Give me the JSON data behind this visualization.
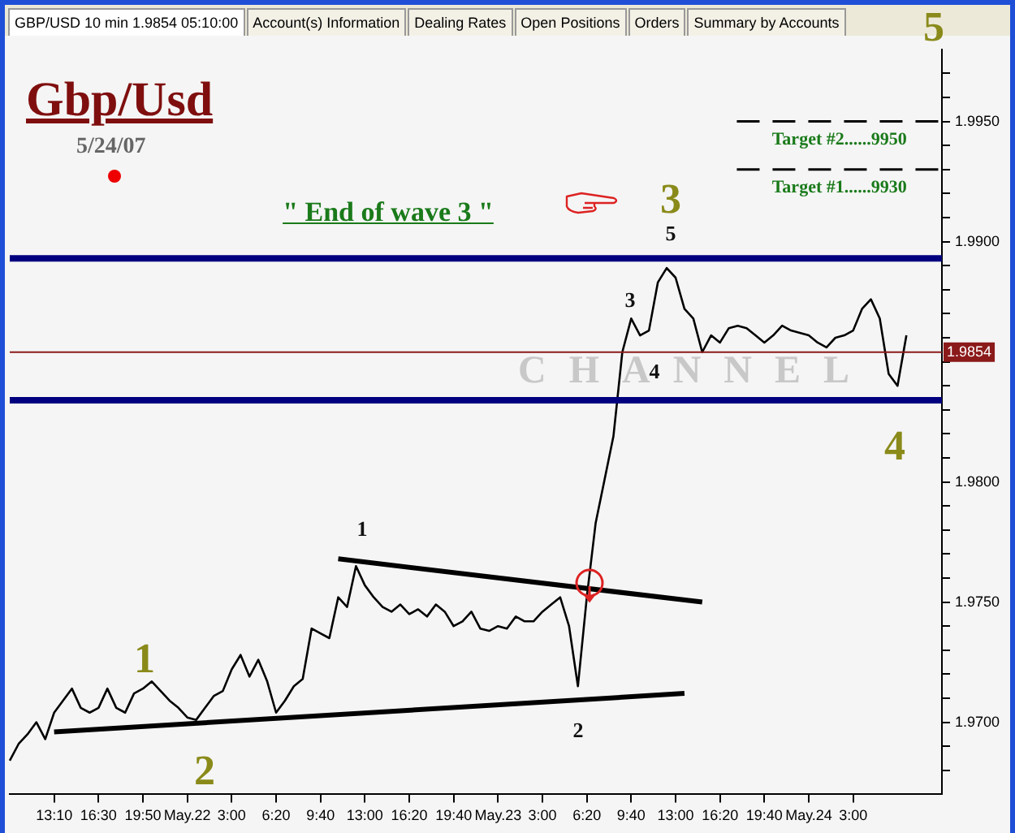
{
  "chart_data": {
    "type": "line",
    "title": "Gbp/Usd",
    "subtitle": "5/24/07",
    "categories": [
      null,
      null,
      null,
      null,
      null,
      "13:10",
      null,
      null,
      null,
      null,
      "16:30",
      null,
      null,
      null,
      null,
      "19:50",
      null,
      null,
      null,
      null,
      "May.22",
      null,
      null,
      null,
      null,
      "3:00",
      null,
      null,
      null,
      null,
      "6:20",
      null,
      null,
      null,
      null,
      "9:40",
      null,
      null,
      null,
      null,
      "13:00",
      null,
      null,
      null,
      null,
      "16:20",
      null,
      null,
      null,
      null,
      "19:40",
      null,
      null,
      null,
      null,
      "May.23",
      null,
      null,
      null,
      null,
      "3:00",
      null,
      null,
      null,
      null,
      "6:20",
      null,
      null,
      null,
      null,
      "9:40",
      null,
      null,
      null,
      null,
      "13:00",
      null,
      null,
      null,
      null,
      "16:20",
      null,
      null,
      null,
      null,
      "19:40",
      null,
      null,
      null,
      null,
      "May.24",
      null,
      null,
      null,
      null,
      "3:00",
      null,
      null,
      null,
      null,
      null,
      null,
      null,
      null,
      null,
      null
    ],
    "series": [
      {
        "color": "#000000",
        "values": [
          1.9684,
          1.9691,
          1.9695,
          1.97,
          1.9693,
          1.9704,
          1.9709,
          1.9714,
          1.9706,
          1.9704,
          1.9706,
          1.9714,
          1.9706,
          1.9704,
          1.9712,
          1.9714,
          1.9717,
          1.9713,
          1.9709,
          1.9706,
          1.9702,
          1.9701,
          1.9706,
          1.9711,
          1.9713,
          1.9722,
          1.9728,
          1.9719,
          1.9726,
          1.9717,
          1.9704,
          1.9709,
          1.9715,
          1.9718,
          1.9739,
          1.9737,
          1.9735,
          1.9752,
          1.9748,
          1.9765,
          1.9757,
          1.9752,
          1.9748,
          1.9746,
          1.9749,
          1.9745,
          1.9747,
          1.9744,
          1.9749,
          1.9746,
          1.974,
          1.9742,
          1.9746,
          1.9739,
          1.9738,
          1.974,
          1.9739,
          1.9744,
          1.9742,
          1.9742,
          1.9746,
          1.9749,
          1.9752,
          1.974,
          1.9715,
          1.9752,
          1.9783,
          1.9801,
          1.9819,
          1.9854,
          1.9868,
          1.9861,
          1.9863,
          1.9883,
          1.9889,
          1.9885,
          1.9872,
          1.9868,
          1.9854,
          1.9861,
          1.9858,
          1.9864,
          1.9865,
          1.9864,
          1.9861,
          1.9858,
          1.9861,
          1.9865,
          1.9863,
          1.9862,
          1.9861,
          1.9858,
          1.9856,
          1.986,
          1.9861,
          1.9863,
          1.9872,
          1.9876,
          1.9868,
          1.9845,
          1.984,
          1.9861,
          null,
          null,
          null,
          null
        ]
      },
      {
        "color": "#000000",
        "values": [
          null,
          null,
          null,
          null,
          null,
          1.9696,
          null,
          null,
          null,
          null,
          null,
          null,
          null,
          null,
          null,
          null,
          null,
          null,
          null,
          null,
          null,
          null,
          null,
          null,
          null,
          null,
          null,
          null,
          null,
          null,
          null,
          null,
          null,
          null,
          null,
          null,
          null,
          null,
          null,
          null,
          null,
          null,
          null,
          null,
          null,
          null,
          null,
          null,
          null,
          null,
          null,
          null,
          null,
          null,
          null,
          null,
          null,
          null,
          null,
          null,
          null,
          null,
          null,
          null,
          null,
          null,
          null,
          null,
          null,
          null,
          null,
          null,
          null,
          null,
          null,
          null,
          1.9712,
          null,
          null,
          null,
          null,
          null,
          null,
          null,
          null,
          null,
          null,
          null,
          null,
          null,
          null,
          null,
          null,
          null,
          null,
          null,
          null,
          null,
          null,
          null,
          null,
          null,
          null,
          null,
          null,
          null
        ]
      },
      {
        "color": "#000000",
        "values": [
          null,
          null,
          null,
          null,
          null,
          null,
          null,
          null,
          null,
          null,
          null,
          null,
          null,
          null,
          null,
          null,
          null,
          null,
          null,
          null,
          null,
          null,
          null,
          null,
          null,
          null,
          null,
          null,
          null,
          null,
          null,
          null,
          null,
          null,
          null,
          null,
          null,
          1.9768,
          null,
          null,
          null,
          null,
          null,
          null,
          null,
          null,
          null,
          null,
          null,
          null,
          null,
          null,
          null,
          null,
          null,
          null,
          null,
          null,
          null,
          null,
          null,
          null,
          null,
          null,
          null,
          null,
          null,
          null,
          null,
          null,
          null,
          null,
          null,
          null,
          null,
          null,
          null,
          null,
          1.975,
          null,
          null,
          null,
          null,
          null,
          null,
          null,
          null,
          null,
          null,
          null,
          null,
          null,
          null,
          null,
          null,
          null,
          null,
          null,
          null,
          null,
          null,
          null,
          null,
          null,
          null,
          null
        ]
      }
    ],
    "ylim": [
      1.967,
      1.998
    ],
    "yticks": [
      {
        "value": 1.968,
        "label": null
      },
      {
        "value": 1.969,
        "label": null
      },
      {
        "value": 1.97,
        "label": "1.9700"
      },
      {
        "value": 1.971,
        "label": null
      },
      {
        "value": 1.972,
        "label": null
      },
      {
        "value": 1.973,
        "label": null
      },
      {
        "value": 1.974,
        "label": null
      },
      {
        "value": 1.975,
        "label": "1.9750"
      },
      {
        "value": 1.976,
        "label": null
      },
      {
        "value": 1.977,
        "label": null
      },
      {
        "value": 1.978,
        "label": null
      },
      {
        "value": 1.979,
        "label": null
      },
      {
        "value": 1.98,
        "label": "1.9800"
      },
      {
        "value": 1.981,
        "label": null
      },
      {
        "value": 1.982,
        "label": null
      },
      {
        "value": 1.983,
        "label": null
      },
      {
        "value": 1.984,
        "label": null
      },
      {
        "value": 1.985,
        "label": null
      },
      {
        "value": 1.986,
        "label": null
      },
      {
        "value": 1.987,
        "label": null
      },
      {
        "value": 1.988,
        "label": null
      },
      {
        "value": 1.989,
        "label": null
      },
      {
        "value": 1.99,
        "label": "1.9900"
      },
      {
        "value": 1.991,
        "label": null
      },
      {
        "value": 1.992,
        "label": null
      },
      {
        "value": 1.993,
        "label": null
      },
      {
        "value": 1.994,
        "label": null
      },
      {
        "value": 1.995,
        "label": "1.9950"
      },
      {
        "value": 1.996,
        "label": null
      },
      {
        "value": 1.997,
        "label": null
      }
    ],
    "ref_lines": [
      {
        "axis": "y",
        "value": 1.9893,
        "color": "#00007f"
      },
      {
        "axis": "y",
        "value": 1.9834,
        "color": "#00007f"
      },
      {
        "axis": "y",
        "value": 1.9854,
        "label": "1.9854",
        "color": "#8b1a1a"
      },
      {
        "axis": "y",
        "value": 1.995,
        "label": "Target #2......9950",
        "color": "#000000",
        "line_style": "dashed"
      },
      {
        "axis": "y",
        "value": 1.993,
        "label": "Target #1......9930",
        "color": "#000000",
        "line_style": "dashed"
      }
    ],
    "annotations": [
      "GBP/USD 10 min 1.9854 05:10:00",
      "Account(s) Information",
      "Dealing Rates",
      "Open Positions",
      "Orders",
      "Summary by Accounts",
      "\" End of wave 3 \"",
      "CHANNEL",
      "1",
      "2",
      "3",
      "4",
      "5",
      "1",
      "2",
      "3",
      "4",
      "5"
    ],
    "legend": false
  }
}
